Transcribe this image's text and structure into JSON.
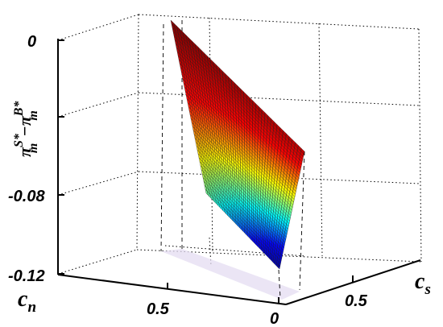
{
  "chart_data": {
    "type": "surface",
    "title": "",
    "xlabel": "c_n",
    "ylabel": "c_s",
    "zlabel": "π_m^S* − π_m^B*",
    "x_ticks": [
      "0.5",
      "0"
    ],
    "y_ticks": [
      "0.5"
    ],
    "z_ticks": [
      "0",
      "-0.08",
      "-0.12"
    ],
    "zlim": [
      -0.12,
      0
    ],
    "colormap": "jet",
    "grid": true,
    "surface_corners": [
      {
        "c_n": 0.45,
        "c_s": 0.45,
        "z": 0.0
      },
      {
        "c_n": 0.45,
        "c_s": 0.0,
        "z": -0.012
      },
      {
        "c_n": 0.0,
        "c_s": 0.0,
        "z": -0.117
      },
      {
        "c_n": 0.0,
        "c_s": 0.45,
        "z": -0.062
      }
    ],
    "colormap_stops": [
      "#00008f",
      "#0000ff",
      "#00ffff",
      "#ffff00",
      "#ff0000",
      "#800000"
    ]
  },
  "labels": {
    "zlabel_main": "π",
    "zlabel_sup1": "S*",
    "zlabel_sub1": "m",
    "zlabel_minus": "−",
    "zlabel_sup2": "B*",
    "zlabel_sub2": "m",
    "xlabel_main": "c",
    "xlabel_sub": "n",
    "ylabel_main": "c",
    "ylabel_sub": "s"
  }
}
